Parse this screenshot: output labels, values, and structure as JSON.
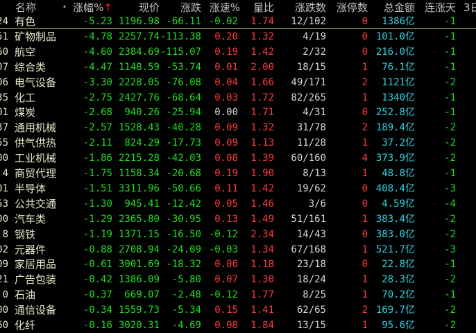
{
  "header": {
    "name": "名称",
    "dot": "•",
    "change_pct": "涨幅%",
    "sort_arrow": "↑",
    "price": "现价",
    "change": "涨跌",
    "speed": "涨速%",
    "vol_ratio": "量比",
    "up_down": "涨跌数",
    "limit_up": "涨停数",
    "amount": "总金额",
    "streak": "连涨天",
    "three_day": "3日"
  },
  "colors": {
    "down": "#22dd22",
    "up": "#ff3b3b",
    "amount": "#33d0e0",
    "name": "#e8e8c8"
  },
  "rows": [
    [
      "24",
      "有色",
      "-5.23",
      "1196.98",
      "-66.11",
      "-0.02",
      "1.74",
      "12/102",
      "0",
      "1386亿",
      "-1"
    ],
    [
      "51",
      "矿物制品",
      "-4.78",
      "2257.74",
      "-113.38",
      "0.20",
      "1.32",
      "4/19",
      "0",
      "101.0亿",
      "-1"
    ],
    [
      "60",
      "航空",
      "-4.60",
      "2384.69",
      "-115.07",
      "0.19",
      "1.42",
      "2/32",
      "0",
      "216.0亿",
      "-1"
    ],
    [
      "07",
      "综合类",
      "-4.47",
      "1148.59",
      "-53.74",
      "0.01",
      "2.00",
      "18/15",
      "1",
      "76.1亿",
      "-1"
    ],
    [
      "06",
      "电气设备",
      "-3.30",
      "2228.05",
      "-76.08",
      "0.04",
      "1.66",
      "49/171",
      "2",
      "1121亿",
      "-2"
    ],
    [
      "35",
      "化工",
      "-2.75",
      "2427.76",
      "-68.64",
      "0.03",
      "1.72",
      "82/265",
      "1",
      "1340亿",
      "-1"
    ],
    [
      "01",
      "煤炭",
      "-2.68",
      "940.26",
      "-25.94",
      "0.00",
      "1.71",
      "4/31",
      "0",
      "252.8亿",
      "-1"
    ],
    [
      "37",
      "通用机械",
      "-2.57",
      "1528.43",
      "-40.28",
      "0.09",
      "1.32",
      "31/78",
      "2",
      "189.4亿",
      "-2"
    ],
    [
      "55",
      "供气供热",
      "-2.11",
      "824.29",
      "-17.73",
      "0.09",
      "1.13",
      "11/28",
      "1",
      "37.2亿",
      "-2"
    ],
    [
      "00",
      "工业机械",
      "-1.86",
      "2215.28",
      "-42.03",
      "0.08",
      "1.39",
      "60/160",
      "4",
      "373.9亿",
      "-2"
    ],
    [
      "4",
      "商贸代理",
      "-1.75",
      "1158.34",
      "-20.68",
      "0.19",
      "1.90",
      "8/13",
      "1",
      "48.8亿",
      "-1"
    ],
    [
      "01",
      "半导体",
      "-1.51",
      "3311.96",
      "-50.66",
      "0.11",
      "1.42",
      "19/62",
      "0",
      "408.4亿",
      "-3"
    ],
    [
      "53",
      "公共交通",
      "-1.30",
      "945.41",
      "-12.42",
      "0.05",
      "1.46",
      "3/6",
      "0",
      "4.59亿",
      "-4"
    ],
    [
      "00",
      "汽车类",
      "-1.29",
      "2365.80",
      "-30.95",
      "0.13",
      "1.49",
      "51/161",
      "1",
      "383.4亿",
      "-2"
    ],
    [
      "8",
      "钢铁",
      "-1.19",
      "1371.15",
      "-16.50",
      "-0.12",
      "2.34",
      "14/43",
      "0",
      "383.0亿",
      "-2"
    ],
    [
      "02",
      "元器件",
      "-0.88",
      "2708.94",
      "-24.09",
      "-0.03",
      "1.34",
      "67/168",
      "1",
      "521.7亿",
      "-3"
    ],
    [
      "09",
      "家居用品",
      "-0.61",
      "3001.69",
      "-18.32",
      "0.06",
      "1.18",
      "23/18",
      "0",
      "22.8亿",
      "-1"
    ],
    [
      "21",
      "广告包装",
      "-0.42",
      "1386.09",
      "-5.80",
      "0.07",
      "1.30",
      "18/24",
      "1",
      "28.3亿",
      "-2"
    ],
    [
      "0",
      "石油",
      "-0.37",
      "669.07",
      "-2.48",
      "-0.12",
      "1.77",
      "8/25",
      "1",
      "70.2亿",
      "-1"
    ],
    [
      "00",
      "通信设备",
      "-0.34",
      "1559.73",
      "-5.34",
      "0.15",
      "1.41",
      "62/65",
      "2",
      "169.7亿",
      "-2"
    ],
    [
      "60",
      "化纤",
      "-0.16",
      "3020.31",
      "-4.69",
      "0.08",
      "1.84",
      "13/15",
      "1",
      "95.6亿",
      "-2"
    ]
  ]
}
